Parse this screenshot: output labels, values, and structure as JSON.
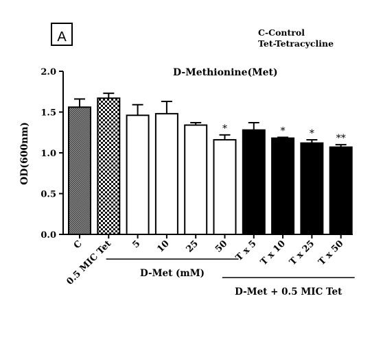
{
  "panel_label": "A",
  "key_lines": [
    "C-Control",
    "Tet-Tetracycline"
  ],
  "chart_data": {
    "type": "bar",
    "title": "D-Methionine(Met)",
    "ylabel": "OD(600nm)",
    "xlabel": "",
    "ylim": [
      0,
      2.0
    ],
    "yticks": [
      "0.0",
      "0.5",
      "1.0",
      "1.5",
      "2.0"
    ],
    "categories": [
      "C",
      "0.5 MIC Tet",
      "5",
      "10",
      "25",
      "50",
      "T x 5",
      "T x 10",
      "T x 25",
      "T x 50"
    ],
    "values": [
      1.56,
      1.67,
      1.46,
      1.48,
      1.34,
      1.16,
      1.28,
      1.18,
      1.12,
      1.07
    ],
    "errors": [
      0.1,
      0.06,
      0.13,
      0.15,
      0.03,
      0.06,
      0.09,
      0.01,
      0.04,
      0.03
    ],
    "significance": [
      "",
      "",
      "",
      "",
      "",
      "*",
      "",
      "*",
      "*",
      "**"
    ],
    "fills": [
      "crosshatch",
      "checker",
      "white",
      "white",
      "white",
      "white",
      "black",
      "black",
      "black",
      "black"
    ],
    "groups": [
      {
        "label": "D-Met (mM)",
        "from": 2,
        "to": 5
      },
      {
        "label": "D-Met + 0.5 MIC Tet",
        "from": 6,
        "to": 9
      }
    ],
    "grid": false,
    "colors": {
      "bar_dark": "#000000",
      "bar_light": "#ffffff",
      "pattern_dark": "#333333"
    }
  }
}
